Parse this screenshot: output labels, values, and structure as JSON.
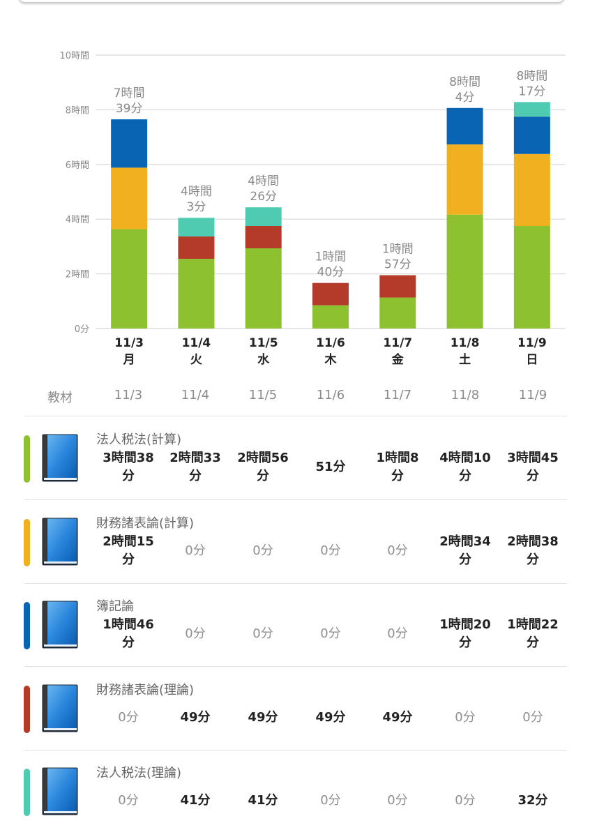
{
  "chart_data": {
    "type": "bar",
    "stacked": true,
    "title": "",
    "xlabel": "",
    "ylabel": "",
    "ylim_minutes": [
      0,
      600
    ],
    "yticks": [
      {
        "value": 0,
        "label": "0分"
      },
      {
        "value": 120,
        "label": "2時間"
      },
      {
        "value": 240,
        "label": "4時間"
      },
      {
        "value": 360,
        "label": "6時間"
      },
      {
        "value": 480,
        "label": "8時間"
      },
      {
        "value": 600,
        "label": "10時間"
      }
    ],
    "grid": true,
    "categories": [
      {
        "date": "11/3",
        "weekday": "月"
      },
      {
        "date": "11/4",
        "weekday": "火"
      },
      {
        "date": "11/5",
        "weekday": "水"
      },
      {
        "date": "11/6",
        "weekday": "木"
      },
      {
        "date": "11/7",
        "weekday": "金"
      },
      {
        "date": "11/8",
        "weekday": "土"
      },
      {
        "date": "11/9",
        "weekday": "日"
      }
    ],
    "totals": [
      {
        "line1": "7時間",
        "line2": "39分",
        "minutes": 459
      },
      {
        "line1": "4時間",
        "line2": "3分",
        "minutes": 243
      },
      {
        "line1": "4時間",
        "line2": "26分",
        "minutes": 266
      },
      {
        "line1": "1時間",
        "line2": "40分",
        "minutes": 100
      },
      {
        "line1": "1時間",
        "line2": "57分",
        "minutes": 117
      },
      {
        "line1": "8時間",
        "line2": "4分",
        "minutes": 484
      },
      {
        "line1": "8時間",
        "line2": "17分",
        "minutes": 497
      }
    ],
    "series": [
      {
        "name": "法人税法(計算)",
        "color": "#8dc12f",
        "values_minutes": [
          218,
          153,
          176,
          51,
          68,
          250,
          225
        ]
      },
      {
        "name": "財務諸表論(計算)",
        "color": "#f0b020",
        "values_minutes": [
          135,
          0,
          0,
          0,
          0,
          154,
          158
        ]
      },
      {
        "name": "簿記論",
        "color": "#0a64b4",
        "values_minutes": [
          106,
          0,
          0,
          0,
          0,
          80,
          82
        ]
      },
      {
        "name": "財務諸表論(理論)",
        "color": "#b43a2a",
        "values_minutes": [
          0,
          49,
          49,
          49,
          49,
          0,
          0
        ]
      },
      {
        "name": "法人税法(理論)",
        "color": "#4ecbb0",
        "values_minutes": [
          0,
          41,
          41,
          0,
          0,
          0,
          32
        ]
      }
    ]
  },
  "table": {
    "header_label": "教材",
    "dates": [
      "11/3",
      "11/4",
      "11/5",
      "11/6",
      "11/7",
      "11/8",
      "11/9"
    ],
    "rows": [
      {
        "name": "法人税法(計算)",
        "color": "#8dc12f",
        "icon": "book-icon",
        "cells": [
          {
            "l1": "3時間38",
            "l2": "分",
            "zero": false
          },
          {
            "l1": "2時間33",
            "l2": "分",
            "zero": false
          },
          {
            "l1": "2時間56",
            "l2": "分",
            "zero": false
          },
          {
            "l1": "51分",
            "l2": "",
            "zero": false
          },
          {
            "l1": "1時間8",
            "l2": "分",
            "zero": false
          },
          {
            "l1": "4時間10",
            "l2": "分",
            "zero": false
          },
          {
            "l1": "3時間45",
            "l2": "分",
            "zero": false
          }
        ]
      },
      {
        "name": "財務諸表論(計算)",
        "color": "#f0b020",
        "icon": "book-icon",
        "cells": [
          {
            "l1": "2時間15",
            "l2": "分",
            "zero": false
          },
          {
            "l1": "0分",
            "l2": "",
            "zero": true
          },
          {
            "l1": "0分",
            "l2": "",
            "zero": true
          },
          {
            "l1": "0分",
            "l2": "",
            "zero": true
          },
          {
            "l1": "0分",
            "l2": "",
            "zero": true
          },
          {
            "l1": "2時間34",
            "l2": "分",
            "zero": false
          },
          {
            "l1": "2時間38",
            "l2": "分",
            "zero": false
          }
        ]
      },
      {
        "name": "簿記論",
        "color": "#0a64b4",
        "icon": "book-icon",
        "cells": [
          {
            "l1": "1時間46",
            "l2": "分",
            "zero": false
          },
          {
            "l1": "0分",
            "l2": "",
            "zero": true
          },
          {
            "l1": "0分",
            "l2": "",
            "zero": true
          },
          {
            "l1": "0分",
            "l2": "",
            "zero": true
          },
          {
            "l1": "0分",
            "l2": "",
            "zero": true
          },
          {
            "l1": "1時間20",
            "l2": "分",
            "zero": false
          },
          {
            "l1": "1時間22",
            "l2": "分",
            "zero": false
          }
        ]
      },
      {
        "name": "財務諸表論(理論)",
        "color": "#b43a2a",
        "icon": "book-icon",
        "cells": [
          {
            "l1": "0分",
            "l2": "",
            "zero": true
          },
          {
            "l1": "49分",
            "l2": "",
            "zero": false
          },
          {
            "l1": "49分",
            "l2": "",
            "zero": false
          },
          {
            "l1": "49分",
            "l2": "",
            "zero": false
          },
          {
            "l1": "49分",
            "l2": "",
            "zero": false
          },
          {
            "l1": "0分",
            "l2": "",
            "zero": true
          },
          {
            "l1": "0分",
            "l2": "",
            "zero": true
          }
        ]
      },
      {
        "name": "法人税法(理論)",
        "color": "#4ecbb0",
        "icon": "book-icon",
        "cells": [
          {
            "l1": "0分",
            "l2": "",
            "zero": true
          },
          {
            "l1": "41分",
            "l2": "",
            "zero": false
          },
          {
            "l1": "41分",
            "l2": "",
            "zero": false
          },
          {
            "l1": "0分",
            "l2": "",
            "zero": true
          },
          {
            "l1": "0分",
            "l2": "",
            "zero": true
          },
          {
            "l1": "0分",
            "l2": "",
            "zero": true
          },
          {
            "l1": "32分",
            "l2": "",
            "zero": false
          }
        ]
      }
    ]
  }
}
